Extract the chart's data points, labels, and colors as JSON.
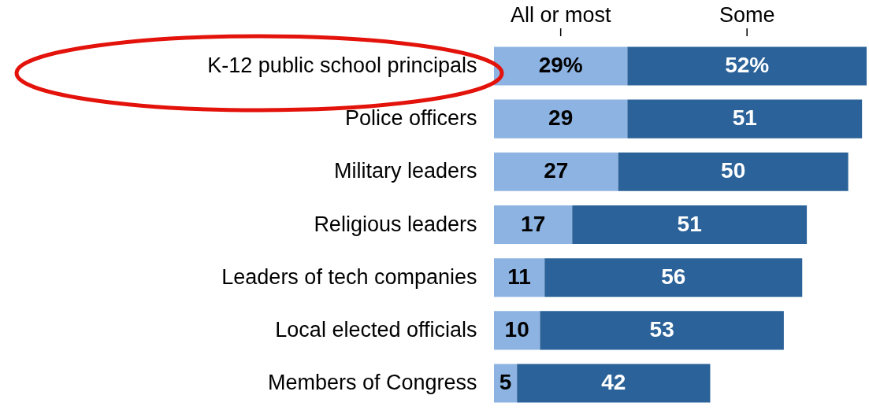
{
  "chart_data": {
    "type": "bar",
    "orientation": "horizontal",
    "stacked": true,
    "legend": "top",
    "tick_labels": "y",
    "xlim": [
      0,
      81
    ],
    "categories": [
      "K-12 public school principals",
      "Police officers",
      "Military leaders",
      "Religious leaders",
      "Leaders of tech companies",
      "Local elected officials",
      "Members of Congress"
    ],
    "series": [
      {
        "name": "All or most",
        "color": "#8db3e2",
        "values": [
          29,
          29,
          27,
          17,
          11,
          10,
          5
        ],
        "value_labels": [
          "29%",
          "29",
          "27",
          "17",
          "11",
          "10",
          "5"
        ]
      },
      {
        "name": "Some",
        "color": "#2b6299",
        "values": [
          52,
          51,
          50,
          51,
          56,
          53,
          42
        ],
        "value_labels": [
          "52%",
          "51",
          "50",
          "51",
          "56",
          "53",
          "42"
        ]
      }
    ]
  }
}
